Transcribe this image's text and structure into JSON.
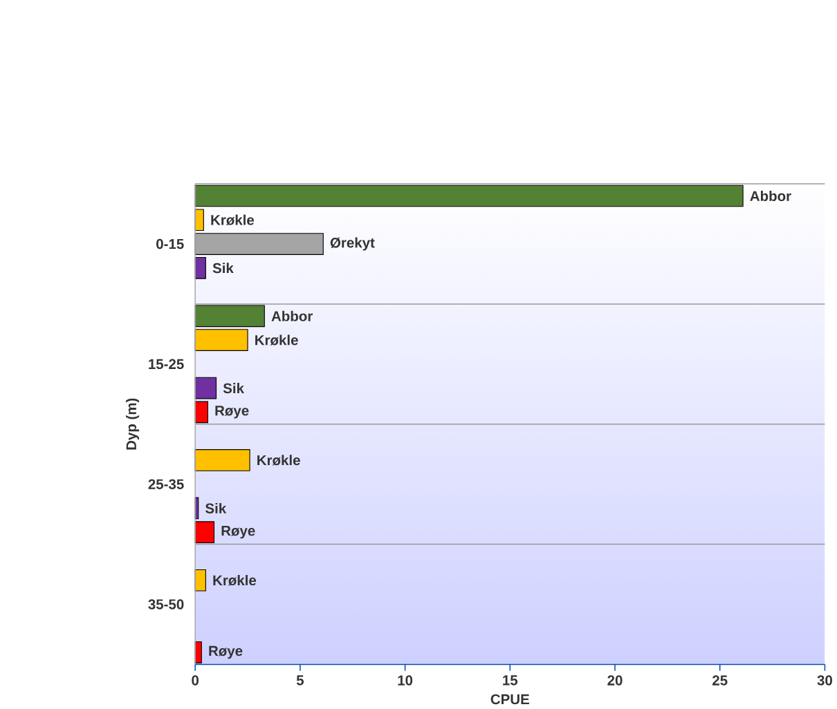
{
  "chart_data": {
    "type": "bar",
    "orientation": "horizontal",
    "xlabel": "CPUE",
    "ylabel": "Dyp (m)",
    "categories": [
      "0-15",
      "15-25",
      "25-35",
      "35-50"
    ],
    "xlim": [
      0,
      30
    ],
    "xticks": [
      0,
      5,
      10,
      15,
      20,
      25,
      30
    ],
    "grid": "y",
    "series": [
      {
        "name": "Abbor",
        "color": "#548235",
        "values": [
          26.1,
          3.3,
          null,
          null
        ]
      },
      {
        "name": "Krøkle",
        "color": "#ffc000",
        "values": [
          0.4,
          2.5,
          2.6,
          0.5
        ]
      },
      {
        "name": "Ørekyt",
        "color": "#a5a5a5",
        "values": [
          6.1,
          null,
          null,
          null
        ]
      },
      {
        "name": "Sik",
        "color": "#7030a0",
        "values": [
          0.5,
          1.0,
          0.15,
          null
        ]
      },
      {
        "name": "Røye",
        "color": "#ff0000",
        "values": [
          null,
          0.6,
          0.9,
          0.3
        ]
      }
    ]
  }
}
